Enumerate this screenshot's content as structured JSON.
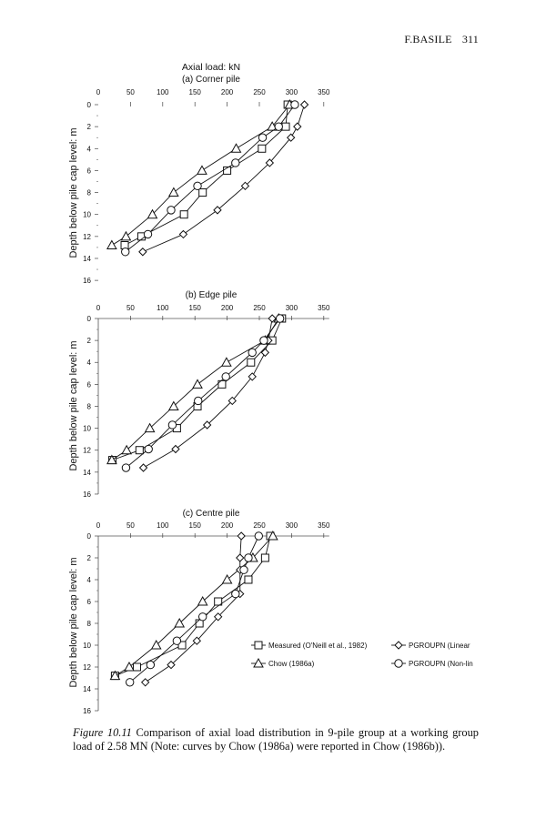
{
  "header": {
    "author": "F.BASILE",
    "page_number": "311"
  },
  "caption": {
    "label": "Figure 10.11",
    "text": "Comparison of axial load distribution in 9-pile group at a working group load of 2.58 MN (Note: curves by Chow (1986a) were reported in Chow (1986b))."
  },
  "chart_data": [
    {
      "type": "line",
      "title": "Axial load: kN",
      "subtitle": "(a) Corner pile",
      "xlabel": "Axial load: kN",
      "ylabel": "Depth below pile cap level: m",
      "xlim": [
        0,
        350
      ],
      "ylim": [
        0,
        16
      ],
      "y_inverted": true,
      "xticks": [
        0,
        50,
        100,
        150,
        200,
        250,
        300,
        350
      ],
      "yticks": [
        0,
        2,
        4,
        6,
        8,
        10,
        12,
        14,
        16
      ],
      "series": [
        {
          "name": "Measured (O'Neill et al., 1982)",
          "marker": "square",
          "x": [
            294,
            291,
            254,
            200,
            162,
            133,
            67,
            41
          ],
          "y": [
            0,
            2,
            4,
            6,
            8,
            10,
            12,
            12.8
          ]
        },
        {
          "name": "Chow (1986a)",
          "marker": "triangle",
          "x": [
            297,
            270,
            214,
            161,
            117,
            84,
            43,
            21
          ],
          "y": [
            0,
            2,
            4,
            6,
            8,
            10,
            12,
            12.8
          ]
        },
        {
          "name": "PGROUPN (Linear)",
          "marker": "diamond",
          "x": [
            320,
            309,
            299,
            266,
            228,
            185,
            132,
            69
          ],
          "y": [
            0,
            2,
            3,
            5.3,
            7.4,
            9.6,
            11.8,
            13.4
          ]
        },
        {
          "name": "PGROUPN (Non-linear)",
          "marker": "circle",
          "x": [
            305,
            280,
            255,
            213,
            154,
            113,
            77,
            42
          ],
          "y": [
            0,
            2,
            3,
            5.3,
            7.4,
            9.6,
            11.8,
            13.4
          ]
        }
      ]
    },
    {
      "type": "line",
      "subtitle": "(b) Edge pile",
      "ylabel": "Depth below pile cap level: m",
      "xlim": [
        0,
        350
      ],
      "ylim": [
        0,
        16
      ],
      "y_inverted": true,
      "xticks": [
        0,
        50,
        100,
        150,
        200,
        250,
        300,
        350
      ],
      "yticks": [
        0,
        2,
        4,
        6,
        8,
        10,
        12,
        14,
        16
      ],
      "series": [
        {
          "name": "Measured (O'Neill et al., 1982)",
          "marker": "square",
          "x": [
            285,
            270,
            237,
            192,
            154,
            122,
            64,
            22
          ],
          "y": [
            0,
            2,
            4,
            6,
            8,
            10,
            12,
            12.9
          ]
        },
        {
          "name": "Chow (1986a)",
          "marker": "triangle",
          "x": [
            280,
            259,
            199,
            154,
            117,
            80,
            44,
            21
          ],
          "y": [
            0,
            2,
            4,
            6,
            8,
            10,
            12,
            12.9
          ]
        },
        {
          "name": "PGROUPN (Linear)",
          "marker": "diamond",
          "x": [
            270,
            264,
            259,
            239,
            208,
            169,
            120,
            70
          ],
          "y": [
            0,
            2,
            3.1,
            5.3,
            7.5,
            9.7,
            11.9,
            13.6
          ]
        },
        {
          "name": "PGROUPN (Non-linear)",
          "marker": "circle",
          "x": [
            282,
            257,
            239,
            198,
            155,
            115,
            78,
            43
          ],
          "y": [
            0,
            2,
            3.1,
            5.3,
            7.5,
            9.7,
            11.9,
            13.6
          ]
        }
      ]
    },
    {
      "type": "line",
      "subtitle": "(c) Centre pile",
      "ylabel": "Depth below pile cap level: m",
      "xlim": [
        0,
        350
      ],
      "ylim": [
        0,
        16
      ],
      "y_inverted": true,
      "xticks": [
        0,
        50,
        100,
        150,
        200,
        250,
        300,
        350
      ],
      "yticks": [
        0,
        2,
        4,
        6,
        8,
        10,
        12,
        14,
        16
      ],
      "series": [
        {
          "name": "Measured (O'Neill et al., 1982)",
          "marker": "square",
          "x": [
            267,
            259,
            233,
            186,
            157,
            130,
            60,
            26
          ],
          "y": [
            0,
            2,
            4,
            6,
            8,
            10,
            12,
            12.8
          ]
        },
        {
          "name": "Chow (1986a)",
          "marker": "triangle",
          "x": [
            271,
            240,
            200,
            162,
            126,
            90,
            48,
            26
          ],
          "y": [
            0,
            2,
            4,
            6,
            8,
            10,
            12,
            12.8
          ]
        },
        {
          "name": "PGROUPN (Linear)",
          "marker": "diamond",
          "x": [
            222,
            220,
            220,
            220,
            186,
            153,
            113,
            73
          ],
          "y": [
            0,
            2,
            3.1,
            5.3,
            7.4,
            9.6,
            11.8,
            13.4
          ]
        },
        {
          "name": "PGROUPN (Non-linear)",
          "marker": "circle",
          "x": [
            249,
            233,
            226,
            213,
            162,
            122,
            81,
            49
          ],
          "y": [
            0,
            2,
            3.1,
            5.3,
            7.4,
            9.6,
            11.8,
            13.4
          ]
        }
      ],
      "legend": {
        "placement": "right",
        "entries": [
          {
            "label": "Measured (O'Neill et al., 1982)",
            "marker": "square"
          },
          {
            "label": "Chow (1986a)",
            "marker": "triangle"
          },
          {
            "label": "PGROUPN (Linear",
            "marker": "diamond"
          },
          {
            "label": "PGROUPN (Non-lin",
            "marker": "circle"
          }
        ]
      }
    }
  ]
}
